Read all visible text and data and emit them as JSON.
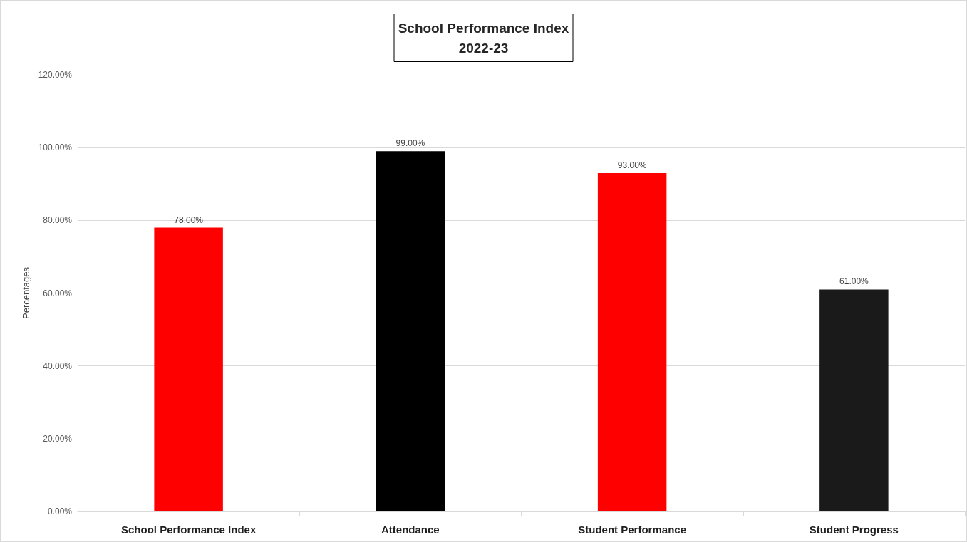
{
  "chart_data": {
    "type": "bar",
    "title": "School Performance Index\n2022-23",
    "ylabel": "Percentages",
    "categories": [
      "School Performance Index",
      "Attendance",
      "Student Performance",
      "Student Progress"
    ],
    "values": [
      78,
      99,
      93,
      61
    ],
    "colors": [
      "#ff0000",
      "#000000",
      "#ff0000",
      "#1a1a1a"
    ],
    "value_labels": [
      "78.00%",
      "99.00%",
      "93.00%",
      "61.00%"
    ],
    "ylim": [
      0,
      120
    ],
    "yticks": [
      {
        "value": 0,
        "label": "0.00%"
      },
      {
        "value": 20,
        "label": "20.00%"
      },
      {
        "value": 40,
        "label": "40.00%"
      },
      {
        "value": 60,
        "label": "60.00%"
      },
      {
        "value": 80,
        "label": "80.00%"
      },
      {
        "value": 100,
        "label": "100.00%"
      },
      {
        "value": 120,
        "label": "120.00%"
      }
    ],
    "grid": "y"
  }
}
